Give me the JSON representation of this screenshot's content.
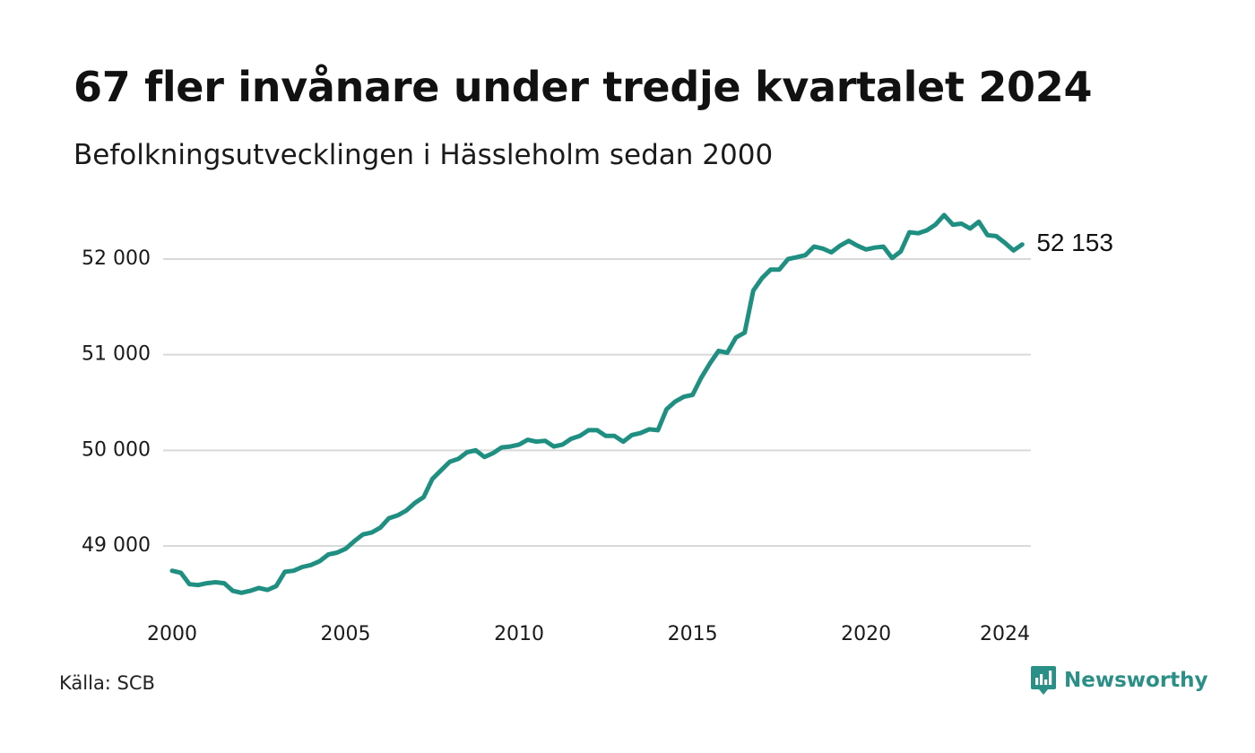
{
  "title": "67 fler invånare under tredje kvartalet 2024",
  "subtitle": "Befolkningsutvecklingen i Hässleholm sedan 2000",
  "source": "Källa: SCB",
  "brand": {
    "name": "Newsworthy",
    "icon": "newsworthy-logo-icon",
    "color": "#2a8f86"
  },
  "chart_data": {
    "type": "line",
    "xlim": [
      2000,
      2024.75
    ],
    "ylim": [
      48500,
      52500
    ],
    "x_ticks": [
      2000,
      2005,
      2010,
      2015,
      2020,
      2024
    ],
    "x_tick_labels": [
      "2000",
      "2005",
      "2010",
      "2015",
      "2020",
      "2024"
    ],
    "y_ticks": [
      49000,
      50000,
      51000,
      52000
    ],
    "y_tick_labels": [
      "49 000",
      "50 000",
      "51 000",
      "52 000"
    ],
    "grid": "horizontal",
    "line_color": "#1f8f82",
    "end_label": "52 153",
    "series": [
      {
        "x_start": 2000.0,
        "x_step": 0.25,
        "values": [
          48740,
          48720,
          48600,
          48590,
          48610,
          48620,
          48610,
          48530,
          48510,
          48530,
          48560,
          48540,
          48580,
          48730,
          48740,
          48780,
          48800,
          48840,
          48910,
          48930,
          48970,
          49050,
          49120,
          49140,
          49190,
          49290,
          49320,
          49370,
          49450,
          49510,
          49700,
          49790,
          49880,
          49910,
          49980,
          50000,
          49930,
          49970,
          50030,
          50040,
          50060,
          50110,
          50090,
          50100,
          50040,
          50060,
          50120,
          50150,
          50210,
          50210,
          50150,
          50150,
          50090,
          50160,
          50180,
          50220,
          50210,
          50430,
          50510,
          50560,
          50580,
          50760,
          50910,
          51040,
          51020,
          51180,
          51230,
          51670,
          51800,
          51890,
          51890,
          52000,
          52020,
          52040,
          52130,
          52110,
          52070,
          52140,
          52190,
          52140,
          52100,
          52120,
          52130,
          52010,
          52080,
          52280,
          52270,
          52300,
          52360,
          52460,
          52360,
          52370,
          52320,
          52390,
          52250,
          52240,
          52170,
          52090,
          52153
        ]
      }
    ]
  }
}
